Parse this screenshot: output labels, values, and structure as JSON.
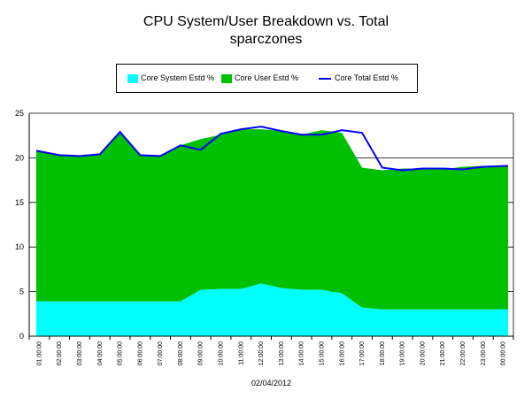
{
  "chart_data": {
    "type": "area",
    "title": "CPU System/User Breakdown vs. Total",
    "subtitle": "sparczones",
    "xlabel": "02/04/2012",
    "ylabel": "",
    "ylim": [
      0,
      25
    ],
    "yticks": [
      "0",
      "5",
      "10",
      "15",
      "20",
      "25"
    ],
    "grid": "horizontal",
    "legend_position": "top",
    "categories": [
      "01:00:00",
      "02:00:00",
      "03:00:00",
      "04:00:00",
      "05:00:00",
      "06:00:00",
      "07:00:00",
      "08:00:00",
      "09:00:00",
      "10:00:00",
      "11:00:00",
      "12:00:00",
      "13:00:00",
      "14:00:00",
      "15:00:00",
      "16:00:00",
      "17:00:00",
      "18:00:00",
      "19:00:00",
      "20:00:00",
      "21:00:00",
      "22:00:00",
      "23:00:00",
      "00:00:00"
    ],
    "tick_labels": [
      "01:00:00",
      "02:00:00",
      "03:00:00",
      "04:00:00",
      "05:00:00",
      "06:00:00",
      "07:00:00",
      "08:00:00",
      "09:00:00",
      "10:00:00",
      "11:00:00",
      "12:00:00",
      "13:00:00",
      "14:00:00",
      "15:00:00",
      "16:00:00",
      "17:00:00",
      "18:00:00",
      "19:00:00",
      "20:00:00",
      "21:00:00",
      "22:00:00",
      "23:00:00",
      "00:00:00"
    ],
    "series": [
      {
        "name": "Core System Estd %",
        "kind": "area",
        "color": "#00ffff",
        "values": [
          3.9,
          3.9,
          3.9,
          3.9,
          3.9,
          3.9,
          3.9,
          3.9,
          5.2,
          5.3,
          5.3,
          5.9,
          5.4,
          5.2,
          5.2,
          4.8,
          3.2,
          3.0,
          3.0,
          3.0,
          3.0,
          3.0,
          3.0,
          3.0
        ]
      },
      {
        "name": "Core User Estd %",
        "kind": "area",
        "color": "#00c000",
        "values": [
          16.9,
          16.4,
          16.3,
          16.5,
          19.0,
          16.4,
          16.3,
          17.5,
          16.9,
          17.3,
          17.9,
          17.3,
          17.6,
          17.4,
          17.9,
          18.0,
          15.7,
          15.6,
          15.8,
          15.8,
          15.7,
          16.0,
          16.1,
          16.1
        ]
      },
      {
        "name": "Core Total Estd %",
        "kind": "line",
        "color": "#0000ff",
        "values": [
          20.8,
          20.3,
          20.2,
          20.4,
          22.9,
          20.3,
          20.2,
          21.4,
          20.9,
          22.7,
          23.2,
          23.5,
          23.0,
          22.6,
          22.6,
          23.1,
          22.8,
          18.9,
          18.6,
          18.8,
          18.8,
          18.7,
          19.0,
          19.1
        ]
      }
    ]
  }
}
